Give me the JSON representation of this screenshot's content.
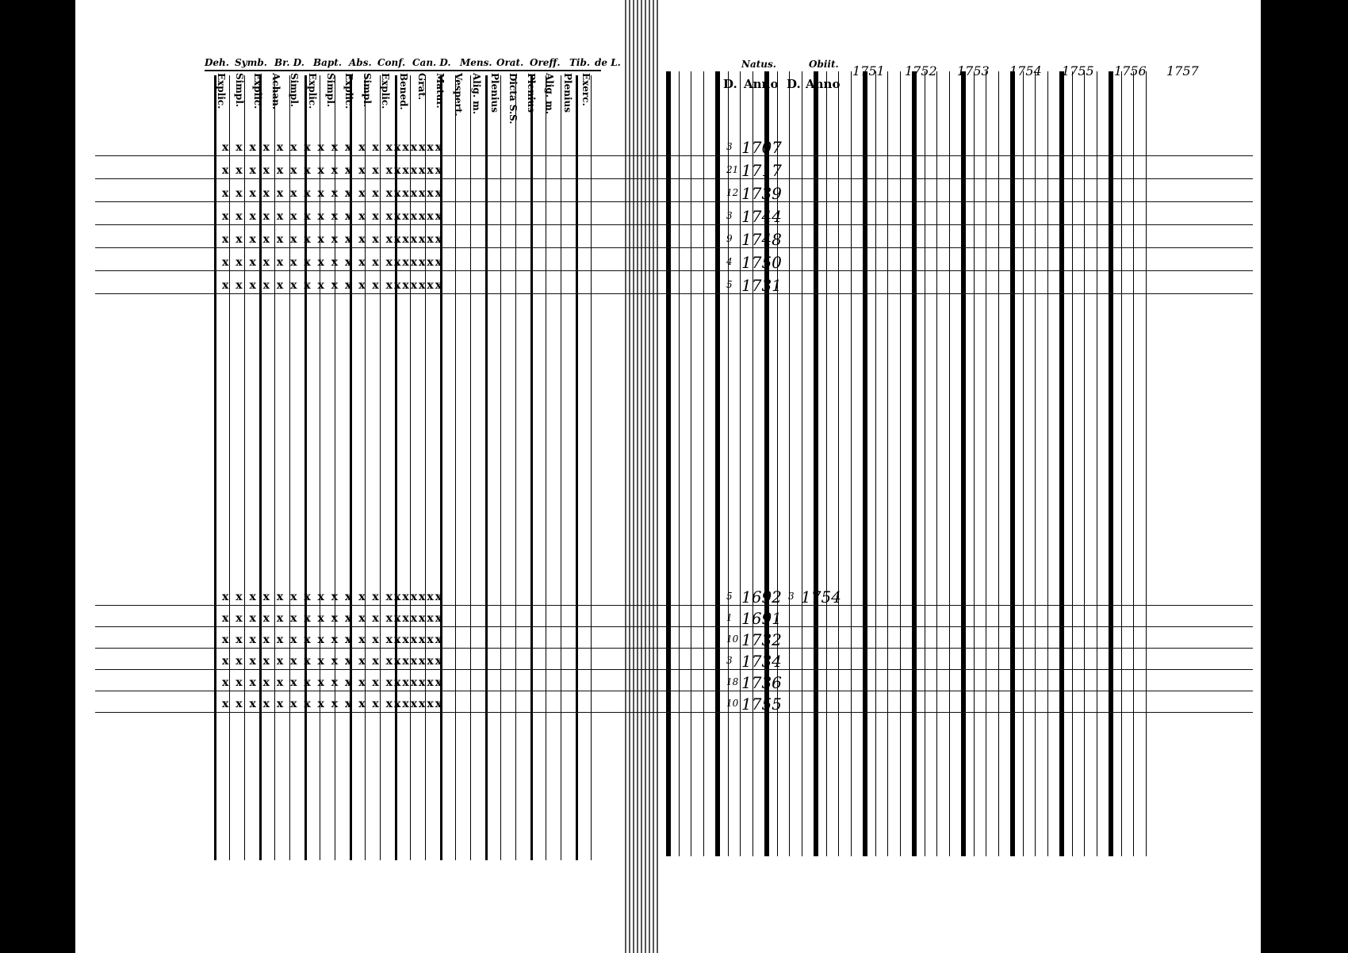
{
  "left_page": {
    "header_row": [
      "Deh.",
      "Symb.",
      "Br. D.",
      "Bapt.",
      "Abs.",
      "Conf.",
      "Can. D.",
      "Mens.",
      "Orat.",
      "Oreff.",
      "Tib.",
      "de L."
    ],
    "sub_headers": [
      "Explic.",
      "Simpl.",
      "Explic.",
      "Achan.",
      "Simpl.",
      "Explic.",
      "Simpl.",
      "Explic.",
      "Simpl.",
      "Explic.",
      "Bened.",
      "Grat.",
      "Matur.",
      "Vespert.",
      "Alig. m.",
      "Plenius",
      "Dicta S.S.",
      "Plenius",
      "Alig. m.",
      "Plenius",
      "Exerc."
    ]
  },
  "right_page": {
    "natus_label": "Natus.",
    "obiit_label": "Obiit.",
    "day_label": "D.",
    "anno_label": "Anno",
    "death_day_label": "D.",
    "death_anno_label": "Anno",
    "years": [
      "1751",
      "1752",
      "1753",
      "1754",
      "1755",
      "1756",
      "1757"
    ],
    "household1": [
      {
        "day": "3",
        "year": "1707"
      },
      {
        "day": "21",
        "year": "1717"
      },
      {
        "day": "12",
        "year": "1739"
      },
      {
        "day": "3",
        "year": "1744"
      },
      {
        "day": "9",
        "year": "1748"
      },
      {
        "day": "4",
        "year": "1750"
      },
      {
        "day": "5",
        "year": "1731"
      }
    ],
    "household2": [
      {
        "day": "5",
        "year": "1692",
        "death_day": "3",
        "death_year": "1754"
      },
      {
        "day": "1",
        "year": "1691"
      },
      {
        "day": "10",
        "year": "1732"
      },
      {
        "day": "3",
        "year": "1734"
      },
      {
        "day": "18",
        "year": "1736"
      },
      {
        "day": "10",
        "year": "1755"
      }
    ]
  }
}
